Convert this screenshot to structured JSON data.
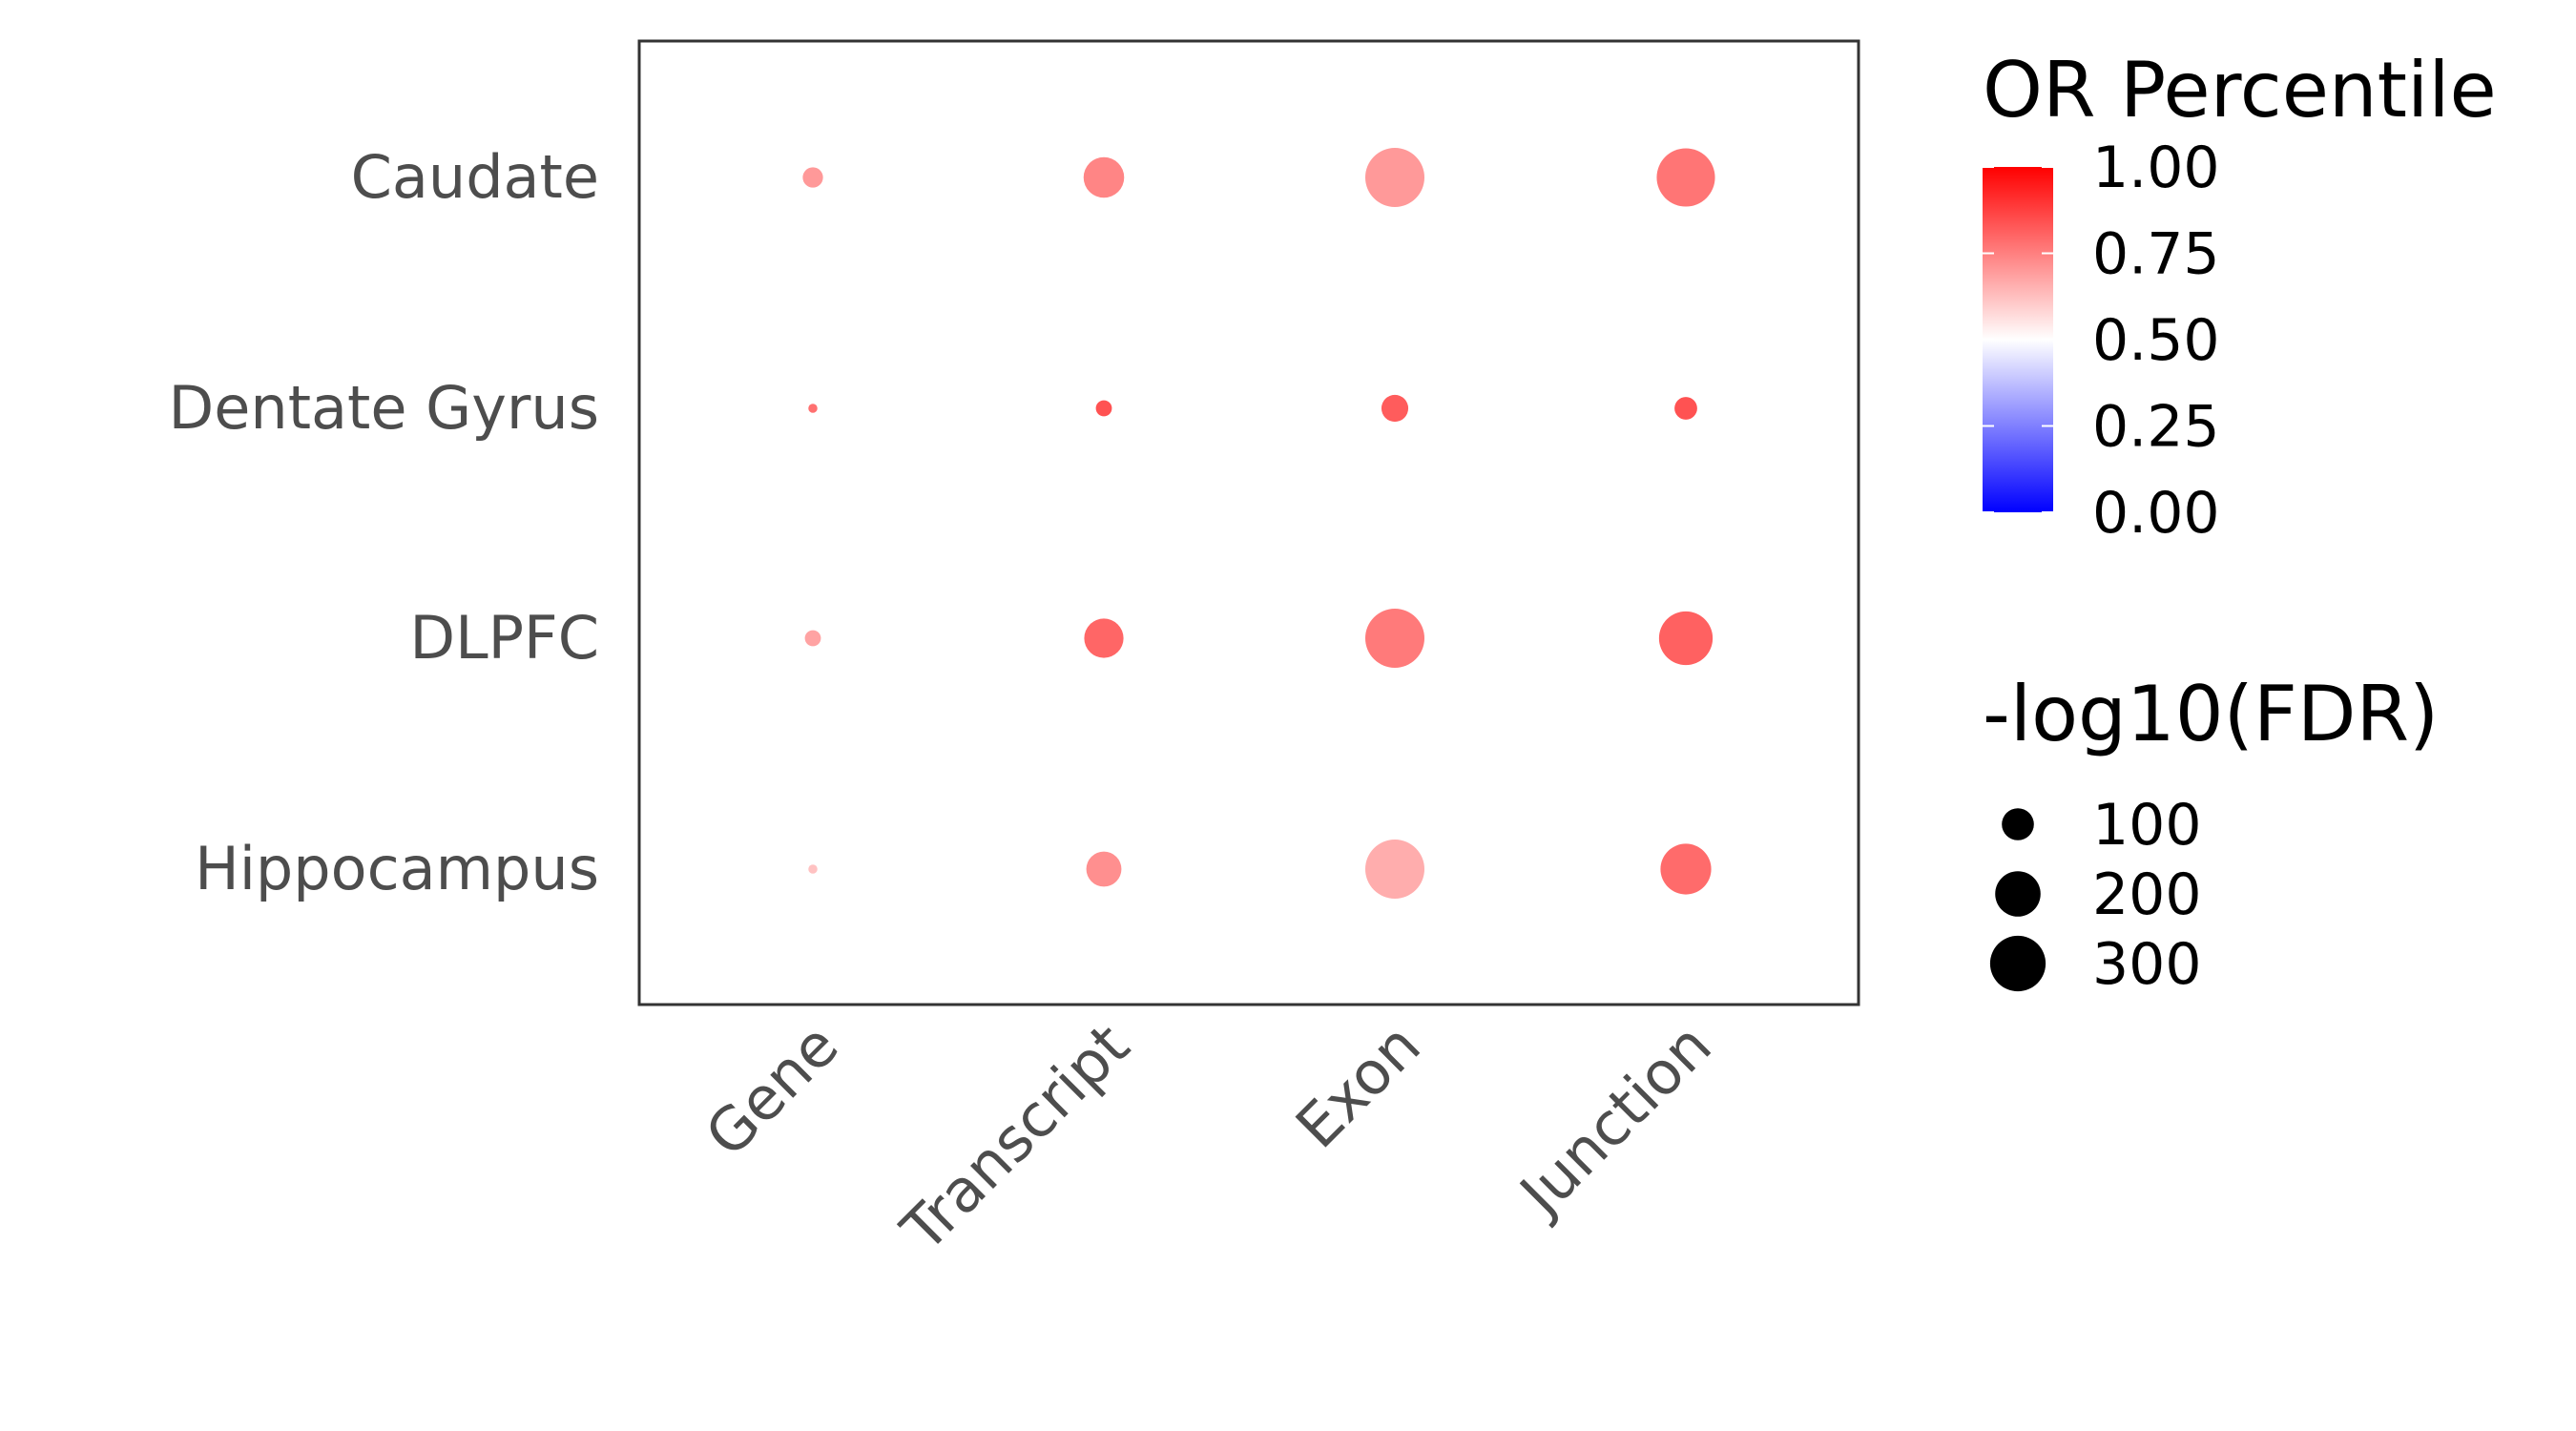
{
  "chart_data": {
    "type": "scatter",
    "title": "",
    "xlabel": "",
    "ylabel": "",
    "x_categories": [
      "Gene",
      "Transcript",
      "Exon",
      "Junction"
    ],
    "y_categories": [
      "Caudate",
      "Dentate Gyrus",
      "DLPFC",
      "Hippocampus"
    ],
    "points": [
      {
        "x": "Gene",
        "y": "Caudate",
        "or_percentile": 0.7,
        "neg_log10_fdr": 40
      },
      {
        "x": "Transcript",
        "y": "Caudate",
        "or_percentile": 0.74,
        "neg_log10_fdr": 160
      },
      {
        "x": "Exon",
        "y": "Caudate",
        "or_percentile": 0.7,
        "neg_log10_fdr": 340
      },
      {
        "x": "Junction",
        "y": "Caudate",
        "or_percentile": 0.77,
        "neg_log10_fdr": 330
      },
      {
        "x": "Gene",
        "y": "Dentate Gyrus",
        "or_percentile": 0.78,
        "neg_log10_fdr": 8
      },
      {
        "x": "Transcript",
        "y": "Dentate Gyrus",
        "or_percentile": 0.84,
        "neg_log10_fdr": 25
      },
      {
        "x": "Exon",
        "y": "Dentate Gyrus",
        "or_percentile": 0.82,
        "neg_log10_fdr": 70
      },
      {
        "x": "Junction",
        "y": "Dentate Gyrus",
        "or_percentile": 0.84,
        "neg_log10_fdr": 50
      },
      {
        "x": "Gene",
        "y": "DLPFC",
        "or_percentile": 0.68,
        "neg_log10_fdr": 25
      },
      {
        "x": "Transcript",
        "y": "DLPFC",
        "or_percentile": 0.8,
        "neg_log10_fdr": 150
      },
      {
        "x": "Exon",
        "y": "DLPFC",
        "or_percentile": 0.76,
        "neg_log10_fdr": 340
      },
      {
        "x": "Junction",
        "y": "DLPFC",
        "or_percentile": 0.81,
        "neg_log10_fdr": 280
      },
      {
        "x": "Gene",
        "y": "Hippocampus",
        "or_percentile": 0.62,
        "neg_log10_fdr": 8
      },
      {
        "x": "Transcript",
        "y": "Hippocampus",
        "or_percentile": 0.72,
        "neg_log10_fdr": 120
      },
      {
        "x": "Exon",
        "y": "Hippocampus",
        "or_percentile": 0.66,
        "neg_log10_fdr": 340
      },
      {
        "x": "Junction",
        "y": "Hippocampus",
        "or_percentile": 0.79,
        "neg_log10_fdr": 250
      }
    ],
    "color_legend": {
      "title": "OR Percentile",
      "ticks": [
        1.0,
        0.75,
        0.5,
        0.25,
        0.0
      ],
      "tick_labels": [
        "1.00",
        "0.75",
        "0.50",
        "0.25",
        "0.00"
      ],
      "low_color": "#0000ff",
      "mid_color": "#ffffff",
      "high_color": "#ff0000",
      "midpoint": 0.5
    },
    "size_legend": {
      "title": "-log10(FDR)",
      "values": [
        100,
        200,
        300
      ],
      "labels": [
        "100",
        "200",
        "300"
      ],
      "color": "#000000"
    },
    "size_range_max_value": 340,
    "grid": false,
    "legend_position": "right"
  }
}
